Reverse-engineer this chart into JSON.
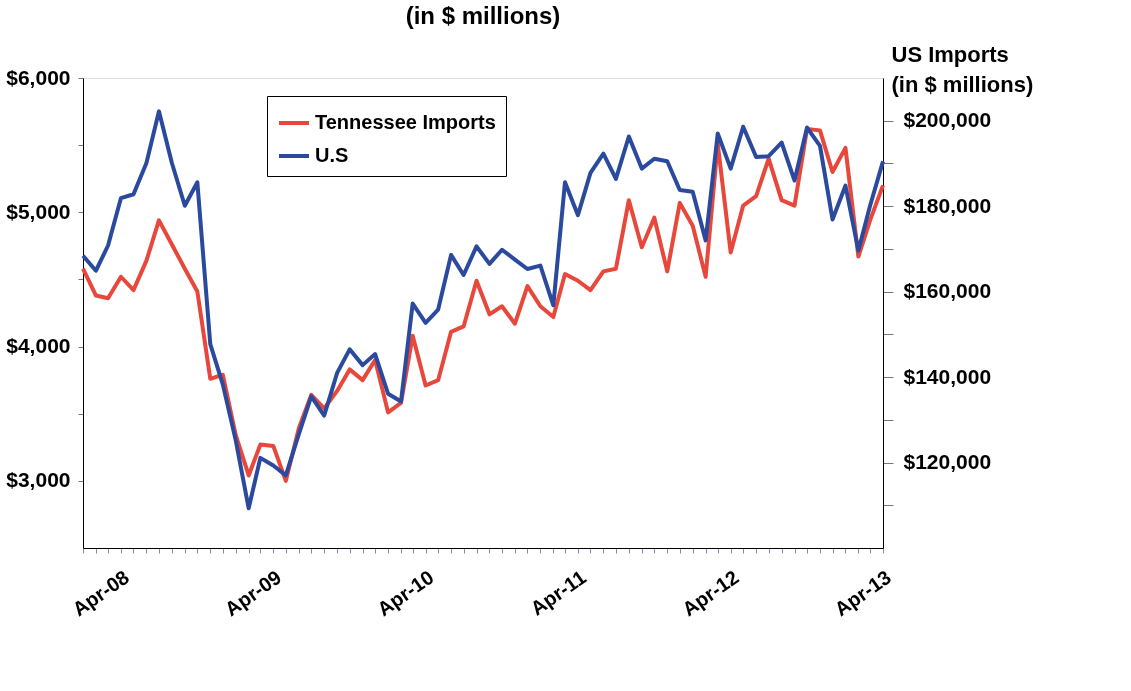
{
  "chart_data": {
    "type": "line",
    "title": "(in $ millions)",
    "y2label": "US Imports\n(in $ millions)",
    "x": [
      "2008-01",
      "2008-02",
      "2008-03",
      "2008-04",
      "2008-05",
      "2008-06",
      "2008-07",
      "2008-08",
      "2008-09",
      "2008-10",
      "2008-11",
      "2008-12",
      "2009-01",
      "2009-02",
      "2009-03",
      "2009-04",
      "2009-05",
      "2009-06",
      "2009-07",
      "2009-08",
      "2009-09",
      "2009-10",
      "2009-11",
      "2009-12",
      "2010-01",
      "2010-02",
      "2010-03",
      "2010-04",
      "2010-05",
      "2010-06",
      "2010-07",
      "2010-08",
      "2010-09",
      "2010-10",
      "2010-11",
      "2010-12",
      "2011-01",
      "2011-02",
      "2011-03",
      "2011-04",
      "2011-05",
      "2011-06",
      "2011-07",
      "2011-08",
      "2011-09",
      "2011-10",
      "2011-11",
      "2011-12",
      "2012-01",
      "2012-02",
      "2012-03",
      "2012-04",
      "2012-05",
      "2012-06",
      "2012-07",
      "2012-08",
      "2012-09",
      "2012-10",
      "2012-11",
      "2012-12",
      "2013-01",
      "2013-02",
      "2013-03",
      "2013-04"
    ],
    "series": [
      {
        "name": "Tennessee Imports",
        "color": "#e8473c",
        "values": [
          4580,
          4380,
          4360,
          4520,
          4420,
          4640,
          4940,
          4760,
          4580,
          4410,
          3760,
          3790,
          3340,
          3040,
          3270,
          3260,
          3000,
          3390,
          3640,
          3540,
          3670,
          3830,
          3750,
          3900,
          3510,
          3580,
          4080,
          3710,
          3750,
          4110,
          4150,
          4490,
          4240,
          4300,
          4170,
          4450,
          4300,
          4220,
          4540,
          4490,
          4420,
          4560,
          4580,
          5090,
          4740,
          4960,
          4560,
          5070,
          4900,
          4520,
          5510,
          4700,
          5050,
          5120,
          5400,
          5090,
          5050,
          5620,
          5610,
          5300,
          5480,
          4670,
          4940,
          5200
        ]
      },
      {
        "name": "U.S",
        "color": "#2b4a9e",
        "axis": "y2",
        "values": [
          168400,
          164900,
          170800,
          181900,
          182800,
          190100,
          202200,
          190100,
          180100,
          185600,
          147700,
          138300,
          125200,
          109300,
          121100,
          119300,
          117000,
          126600,
          135500,
          131000,
          141000,
          146500,
          142800,
          145400,
          136100,
          134300,
          157200,
          152700,
          155800,
          168600,
          163900,
          170600,
          166500,
          169800,
          167500,
          165300,
          166100,
          156800,
          185600,
          177900,
          187800,
          192300,
          186400,
          196300,
          188800,
          191100,
          190500,
          183800,
          183400,
          172000,
          197000,
          188800,
          198600,
          191500,
          191700,
          194900,
          186000,
          198400,
          194100,
          176900,
          184800,
          169600,
          180100,
          190500
        ]
      }
    ],
    "xlim": [
      "2008-01",
      "2013-04"
    ],
    "xticks": [
      {
        "value": "2008-01",
        "label": null
      },
      {
        "value": "2008-02",
        "label": null
      },
      {
        "value": "2008-03",
        "label": null
      },
      {
        "value": "2008-04",
        "label": "Apr-08"
      },
      {
        "value": "2008-05",
        "label": null
      },
      {
        "value": "2008-06",
        "label": null
      },
      {
        "value": "2008-07",
        "label": null
      },
      {
        "value": "2008-08",
        "label": null
      },
      {
        "value": "2008-09",
        "label": null
      },
      {
        "value": "2008-10",
        "label": null
      },
      {
        "value": "2008-11",
        "label": null
      },
      {
        "value": "2008-12",
        "label": null
      },
      {
        "value": "2009-01",
        "label": null
      },
      {
        "value": "2009-02",
        "label": null
      },
      {
        "value": "2009-03",
        "label": null
      },
      {
        "value": "2009-04",
        "label": "Apr-09"
      },
      {
        "value": "2009-05",
        "label": null
      },
      {
        "value": "2009-06",
        "label": null
      },
      {
        "value": "2009-07",
        "label": null
      },
      {
        "value": "2009-08",
        "label": null
      },
      {
        "value": "2009-09",
        "label": null
      },
      {
        "value": "2009-10",
        "label": null
      },
      {
        "value": "2009-11",
        "label": null
      },
      {
        "value": "2009-12",
        "label": null
      },
      {
        "value": "2010-01",
        "label": null
      },
      {
        "value": "2010-02",
        "label": null
      },
      {
        "value": "2010-03",
        "label": null
      },
      {
        "value": "2010-04",
        "label": "Apr-10"
      },
      {
        "value": "2010-05",
        "label": null
      },
      {
        "value": "2010-06",
        "label": null
      },
      {
        "value": "2010-07",
        "label": null
      },
      {
        "value": "2010-08",
        "label": null
      },
      {
        "value": "2010-09",
        "label": null
      },
      {
        "value": "2010-10",
        "label": null
      },
      {
        "value": "2010-11",
        "label": null
      },
      {
        "value": "2010-12",
        "label": null
      },
      {
        "value": "2011-01",
        "label": null
      },
      {
        "value": "2011-02",
        "label": null
      },
      {
        "value": "2011-03",
        "label": null
      },
      {
        "value": "2011-04",
        "label": "Apr-11"
      },
      {
        "value": "2011-05",
        "label": null
      },
      {
        "value": "2011-06",
        "label": null
      },
      {
        "value": "2011-07",
        "label": null
      },
      {
        "value": "2011-08",
        "label": null
      },
      {
        "value": "2011-09",
        "label": null
      },
      {
        "value": "2011-10",
        "label": null
      },
      {
        "value": "2011-11",
        "label": null
      },
      {
        "value": "2011-12",
        "label": null
      },
      {
        "value": "2012-01",
        "label": null
      },
      {
        "value": "2012-02",
        "label": null
      },
      {
        "value": "2012-03",
        "label": null
      },
      {
        "value": "2012-04",
        "label": "Apr-12"
      },
      {
        "value": "2012-05",
        "label": null
      },
      {
        "value": "2012-06",
        "label": null
      },
      {
        "value": "2012-07",
        "label": null
      },
      {
        "value": "2012-08",
        "label": null
      },
      {
        "value": "2012-09",
        "label": null
      },
      {
        "value": "2012-10",
        "label": null
      },
      {
        "value": "2012-11",
        "label": null
      },
      {
        "value": "2012-12",
        "label": null
      },
      {
        "value": "2013-01",
        "label": null
      },
      {
        "value": "2013-02",
        "label": null
      },
      {
        "value": "2013-03",
        "label": null
      },
      {
        "value": "2013-04",
        "label": "Apr-13"
      }
    ],
    "ylim": [
      2500,
      6000
    ],
    "yticks": [
      {
        "value": 3000,
        "label": "$3,000"
      },
      {
        "value": 3500,
        "label": null
      },
      {
        "value": 4000,
        "label": "$4,000"
      },
      {
        "value": 4500,
        "label": null
      },
      {
        "value": 5000,
        "label": "$5,000"
      },
      {
        "value": 5500,
        "label": null
      },
      {
        "value": 6000,
        "label": "$6,000"
      }
    ],
    "y2lim": [
      100000,
      210000
    ],
    "y2ticks": [
      {
        "value": 110000,
        "label": null
      },
      {
        "value": 120000,
        "label": "$120,000"
      },
      {
        "value": 130000,
        "label": null
      },
      {
        "value": 140000,
        "label": "$140,000"
      },
      {
        "value": 150000,
        "label": null
      },
      {
        "value": 160000,
        "label": "$160,000"
      },
      {
        "value": 170000,
        "label": null
      },
      {
        "value": 180000,
        "label": "$180,000"
      },
      {
        "value": 190000,
        "label": null
      },
      {
        "value": 200000,
        "label": "$200,000"
      }
    ],
    "legend": "top",
    "grid": false,
    "marker": "none",
    "line_style": "solid"
  }
}
